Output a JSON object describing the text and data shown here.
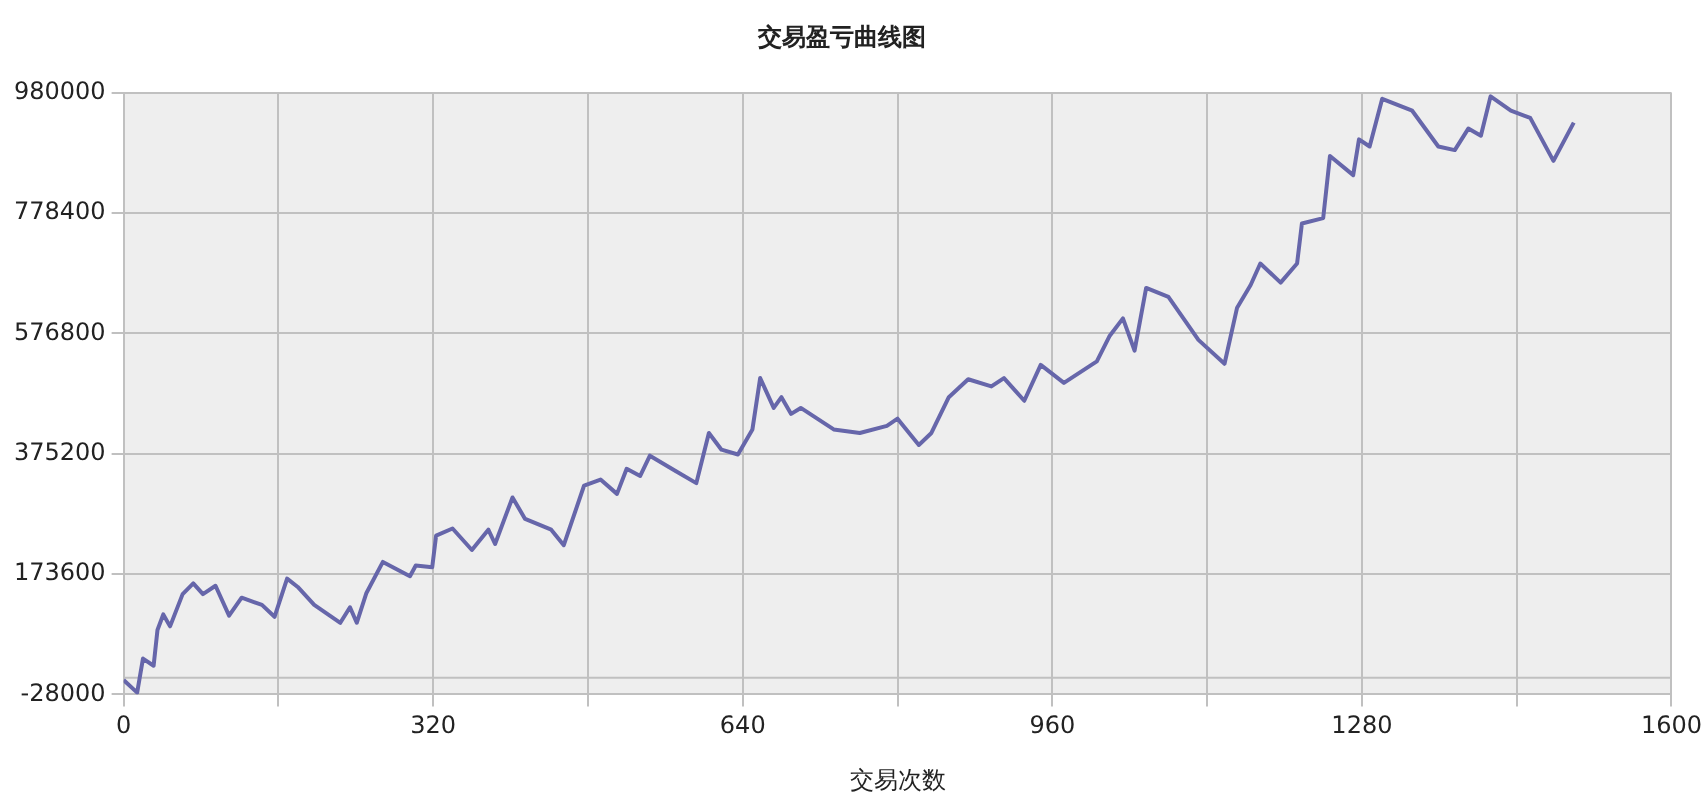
{
  "chart_data": {
    "type": "line",
    "title": "交易盈亏曲线图",
    "xlabel": "交易次数",
    "xlim": [
      0,
      1600
    ],
    "xticks": [
      0,
      {
        "value": 160,
        "label": null
      },
      320,
      {
        "value": 480,
        "label": null
      },
      640,
      {
        "value": 800,
        "label": null
      },
      960,
      {
        "value": 1120,
        "label": null
      },
      1280,
      {
        "value": 1440,
        "label": null
      },
      1600
    ],
    "ylim": [
      -28000,
      980000
    ],
    "yticks": [
      -28000,
      173600,
      375200,
      576800,
      778400,
      980000
    ],
    "grid": true,
    "legend": false,
    "marker": "none",
    "line_style": "solid",
    "ref_lines": [
      {
        "axis": "y",
        "value": 0,
        "color": "#c0c0c0"
      }
    ],
    "series": [
      {
        "color": "#6666aa",
        "x": [
          0,
          14,
          20,
          31,
          35,
          41,
          48,
          61,
          72,
          82,
          95,
          109,
          122,
          143,
          156,
          169,
          180,
          197,
          224,
          234,
          241,
          251,
          268,
          296,
          302,
          319,
          323,
          340,
          360,
          377,
          384,
          402,
          415,
          442,
          455,
          476,
          493,
          510,
          520,
          534,
          544,
          571,
          592,
          605,
          618,
          635,
          650,
          658,
          672,
          680,
          690,
          700,
          734,
          761,
          789,
          800,
          822,
          835,
          853,
          873,
          897,
          910,
          931,
          948,
          972,
          1006,
          1019,
          1033,
          1045,
          1057,
          1080,
          1111,
          1138,
          1151,
          1165,
          1175,
          1196,
          1213,
          1218,
          1240,
          1247,
          1271,
          1277,
          1288,
          1301,
          1332,
          1359,
          1376,
          1390,
          1403,
          1413,
          1434,
          1454,
          1478,
          1499
        ],
        "values": [
          -4000,
          -25000,
          32000,
          20000,
          80000,
          106000,
          86000,
          140000,
          158000,
          140000,
          154000,
          104000,
          134000,
          122000,
          102000,
          166000,
          152000,
          122000,
          92000,
          118000,
          92000,
          142000,
          194000,
          170000,
          188000,
          185000,
          238000,
          250000,
          214000,
          248000,
          224000,
          302000,
          266000,
          248000,
          222000,
          322000,
          332000,
          308000,
          350000,
          338000,
          372000,
          346000,
          326000,
          410000,
          382000,
          374000,
          416000,
          502000,
          452000,
          470000,
          442000,
          452000,
          416000,
          410000,
          422000,
          434000,
          390000,
          410000,
          470000,
          500000,
          488000,
          502000,
          464000,
          524000,
          494000,
          530000,
          572000,
          602000,
          548000,
          653000,
          638000,
          566000,
          526000,
          620000,
          658000,
          694000,
          662000,
          694000,
          761000,
          770000,
          874000,
          842000,
          902000,
          890000,
          970000,
          950000,
          890000,
          884000,
          920000,
          908000,
          974000,
          950000,
          938000,
          866000,
          930000
        ]
      }
    ]
  }
}
